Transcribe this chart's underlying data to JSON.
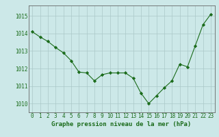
{
  "x": [
    0,
    1,
    2,
    3,
    4,
    5,
    6,
    7,
    8,
    9,
    10,
    11,
    12,
    13,
    14,
    15,
    16,
    17,
    18,
    19,
    20,
    21,
    22,
    23
  ],
  "y": [
    1014.1,
    1013.8,
    1013.55,
    1013.2,
    1012.9,
    1012.45,
    1011.8,
    1011.75,
    1011.3,
    1011.65,
    1011.75,
    1011.75,
    1011.75,
    1011.45,
    1010.6,
    1010.0,
    1010.45,
    1010.9,
    1011.3,
    1012.25,
    1012.1,
    1013.3,
    1014.5,
    1015.1
  ],
  "line_color": "#1a6b1a",
  "marker": "D",
  "marker_size": 2.2,
  "bg_color": "#cce8e8",
  "grid_color": "#aac8c8",
  "ylim": [
    1009.5,
    1015.6
  ],
  "xlim": [
    -0.5,
    23.5
  ],
  "yticks": [
    1010,
    1011,
    1012,
    1013,
    1014,
    1015
  ],
  "xticks": [
    0,
    1,
    2,
    3,
    4,
    5,
    6,
    7,
    8,
    9,
    10,
    11,
    12,
    13,
    14,
    15,
    16,
    17,
    18,
    19,
    20,
    21,
    22,
    23
  ],
  "xlabel": "Graphe pression niveau de la mer (hPa)",
  "xlabel_fontsize": 6.5,
  "tick_fontsize": 5.5,
  "tick_color": "#1a6b1a",
  "label_color": "#1a6b1a",
  "spine_color": "#666666"
}
